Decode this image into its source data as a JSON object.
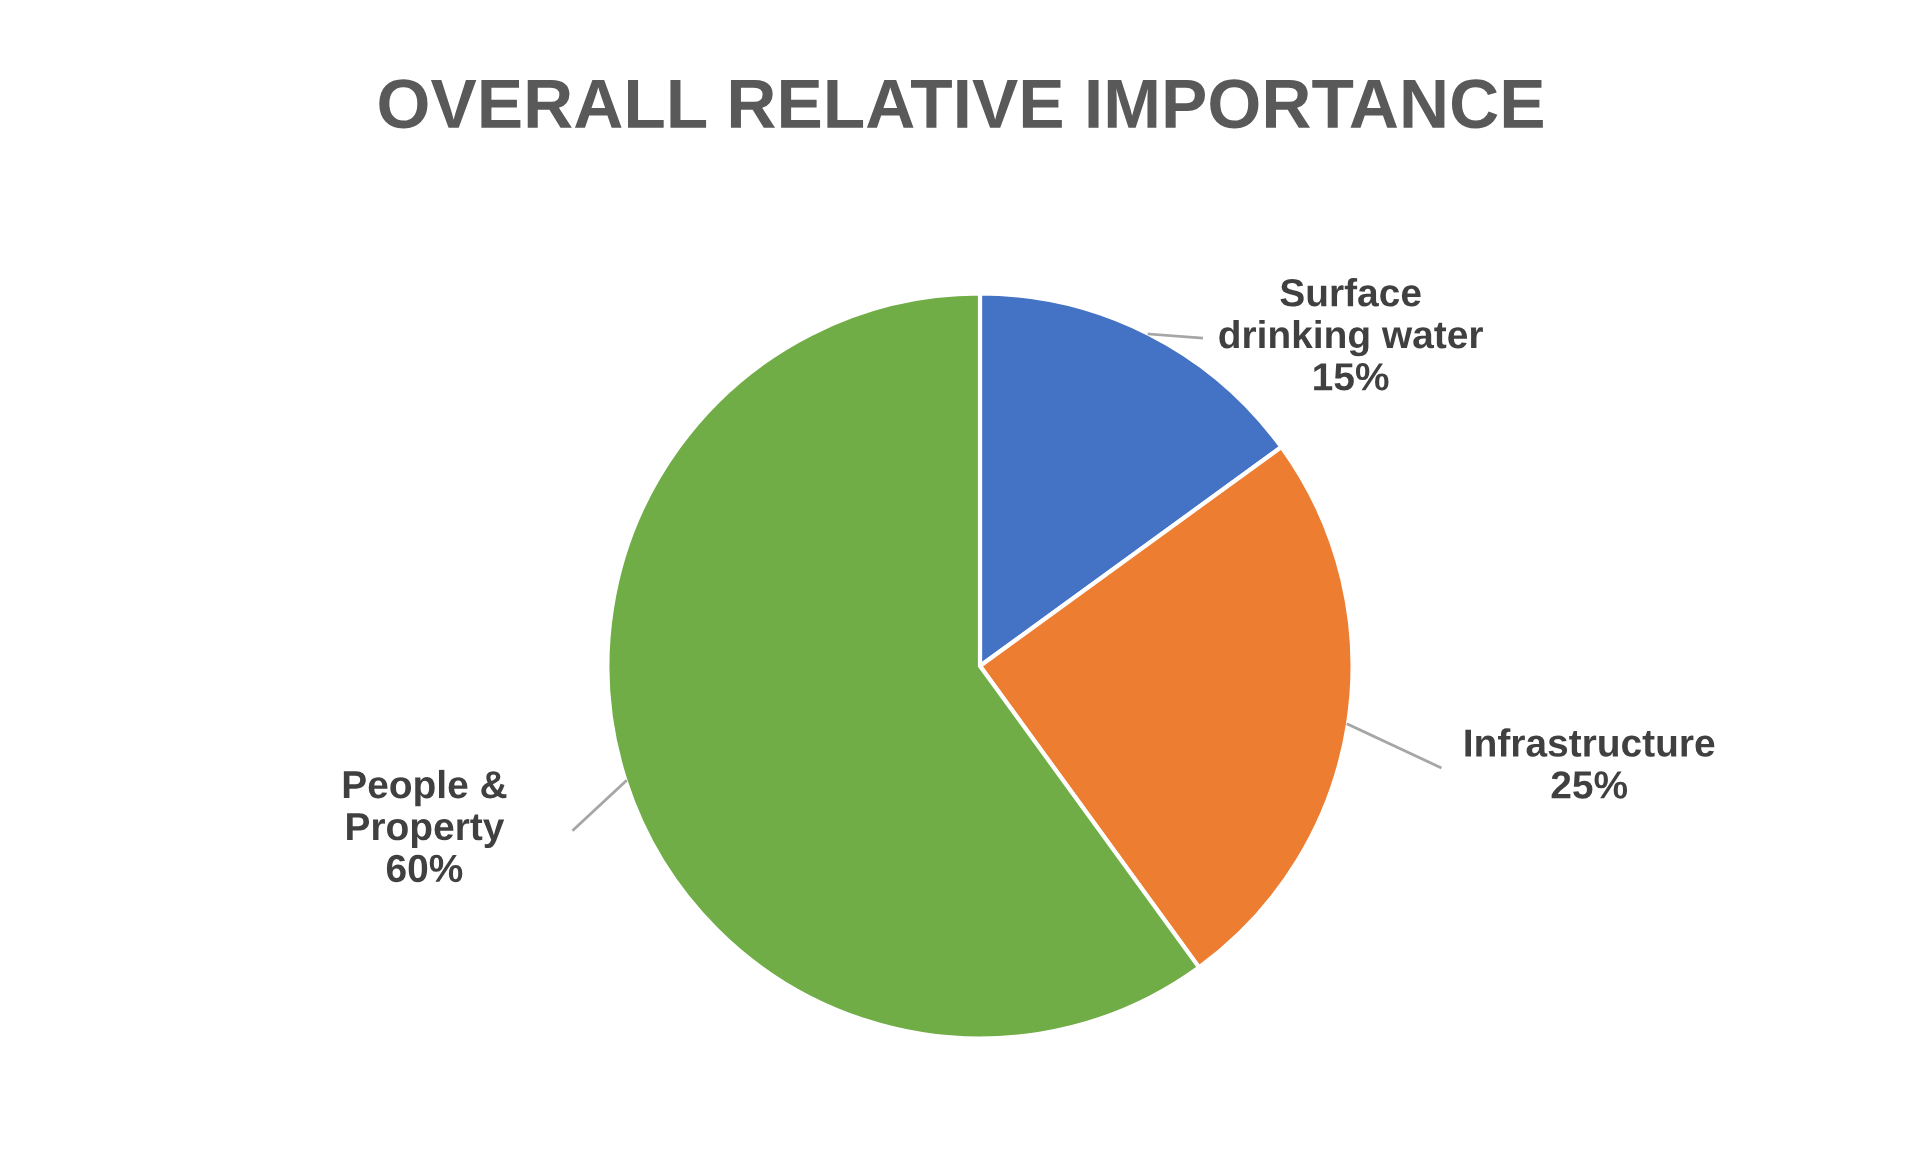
{
  "chart_data": {
    "type": "pie",
    "title": "OVERALL RELATIVE IMPORTANCE",
    "categories": [
      "Surface\ndrinking water",
      "Infrastructure",
      "People &\nProperty"
    ],
    "values": [
      15,
      25,
      60
    ],
    "colors": [
      "#4472c4",
      "#ed7d31",
      "#70ad47"
    ],
    "value_labels": [
      "15%",
      "25%",
      "60%"
    ],
    "legend": false
  }
}
